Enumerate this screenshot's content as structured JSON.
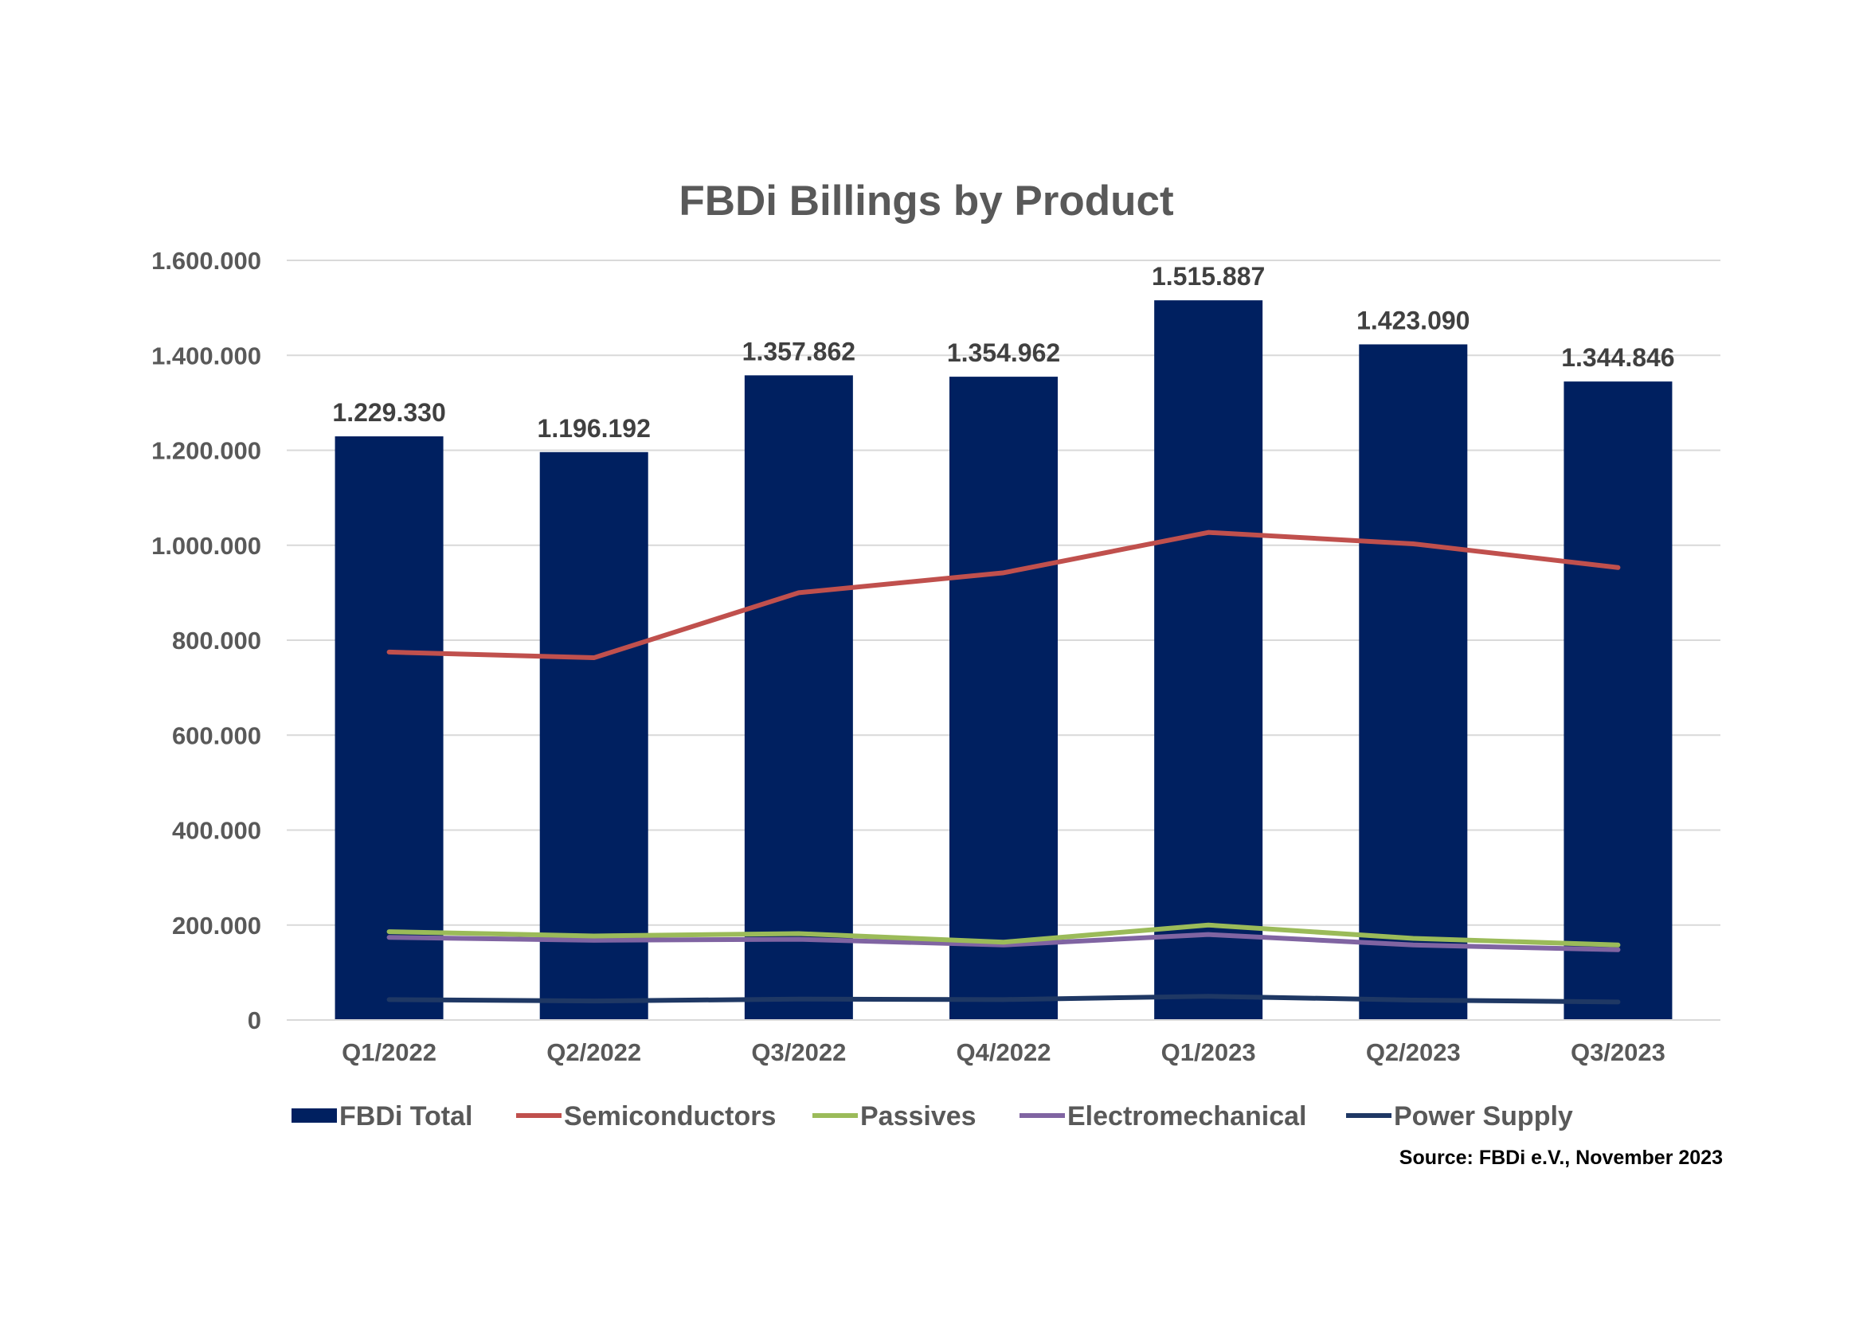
{
  "chart_data": {
    "type": "bar",
    "title": "FBDi Billings by Product",
    "xlabel": "",
    "ylabel": "",
    "ylim": [
      0,
      1600000
    ],
    "ytick_values": [
      0,
      200000,
      400000,
      600000,
      800000,
      1000000,
      1200000,
      1400000,
      1600000
    ],
    "ytick_labels": [
      "0",
      "200.000",
      "400.000",
      "600.000",
      "800.000",
      "1.000.000",
      "1.200.000",
      "1.400.000",
      "1.600.000"
    ],
    "grid": true,
    "categories": [
      "Q1/2022",
      "Q2/2022",
      "Q3/2022",
      "Q4/2022",
      "Q1/2023",
      "Q2/2023",
      "Q3/2023"
    ],
    "bar_series": {
      "name": "FBDi Total",
      "color": "#002060",
      "values": [
        1229330,
        1196192,
        1357862,
        1354962,
        1515887,
        1423090,
        1344846
      ],
      "data_labels": [
        "1.229.330",
        "1.196.192",
        "1.357.862",
        "1.354.962",
        "1.515.887",
        "1.423.090",
        "1.344.846"
      ]
    },
    "line_series": [
      {
        "name": "Semiconductors",
        "color": "#C0504D",
        "values": [
          775000,
          763000,
          900000,
          942000,
          1027000,
          1003000,
          953000
        ]
      },
      {
        "name": "Passives",
        "color": "#9BBB59",
        "values": [
          186000,
          177000,
          182000,
          164000,
          200000,
          172000,
          158000
        ]
      },
      {
        "name": "Electromechanical",
        "color": "#8064A2",
        "values": [
          174000,
          168000,
          170000,
          158000,
          180000,
          158000,
          148000
        ]
      },
      {
        "name": "Power Supply",
        "color": "#1F3864",
        "values": [
          43000,
          40000,
          44000,
          43000,
          50000,
          42000,
          38000
        ]
      }
    ],
    "legend": {
      "placement": "bottom",
      "items": [
        "FBDi Total",
        "Semiconductors",
        "Passives",
        "Electromechanical",
        "Power Supply"
      ]
    },
    "source": "Source: FBDi e.V., November 2023"
  }
}
